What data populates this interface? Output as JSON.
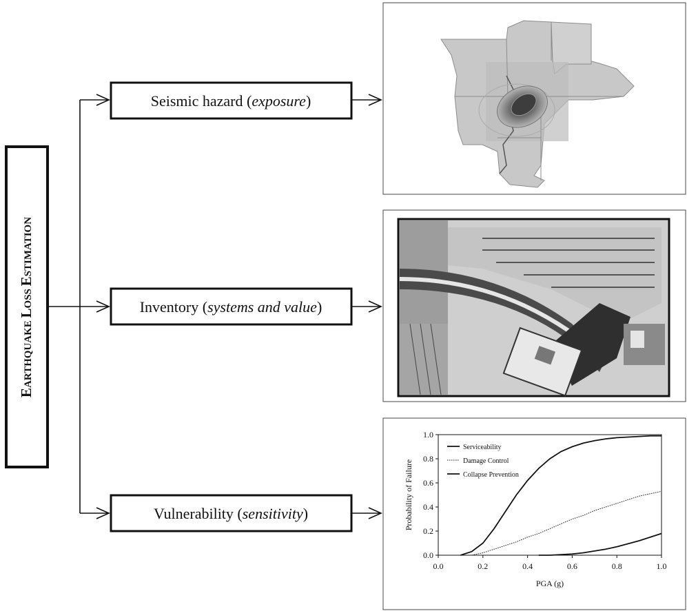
{
  "title_main": {
    "e": "E",
    "arthquake": "ARTHQUAKE ",
    "l": "L",
    "oss": "OSS ",
    "es": "E",
    "stimation": "STIMATION"
  },
  "boxes": [
    {
      "plain": "Seismic hazard (",
      "italic": "exposure",
      "close": ")"
    },
    {
      "plain": "Inventory (",
      "italic": "systems and value",
      "close": ")"
    },
    {
      "plain": "Vulnerability (",
      "italic": "sensitivity",
      "close": ")"
    }
  ],
  "colors": {
    "map_fill": "#c8c8c8",
    "map_dark": "#555555",
    "photo_light": "#d9d9d9",
    "photo_dark": "#3a3a3a"
  },
  "chart_data": {
    "type": "line",
    "xlabel": "PGA (g)",
    "ylabel": "Probability of Failure",
    "xlim": [
      0.0,
      1.0
    ],
    "ylim": [
      0.0,
      1.0
    ],
    "xticks": [
      "0.0",
      "0.2",
      "0.4",
      "0.6",
      "0.8",
      "1.0"
    ],
    "yticks": [
      "0.0",
      "0.2",
      "0.4",
      "0.6",
      "0.8",
      "1.0"
    ],
    "legend_position": "top-left",
    "series": [
      {
        "name": "Serviceability",
        "style": "solid",
        "x": [
          0.1,
          0.15,
          0.2,
          0.25,
          0.3,
          0.35,
          0.4,
          0.45,
          0.5,
          0.55,
          0.6,
          0.65,
          0.7,
          0.75,
          0.8,
          0.85,
          0.9,
          0.95,
          1.0
        ],
        "y": [
          0.0,
          0.03,
          0.1,
          0.22,
          0.36,
          0.5,
          0.62,
          0.72,
          0.8,
          0.86,
          0.9,
          0.93,
          0.95,
          0.965,
          0.975,
          0.98,
          0.985,
          0.99,
          0.99
        ]
      },
      {
        "name": "Damage Control",
        "style": "dotted",
        "x": [
          0.15,
          0.2,
          0.25,
          0.3,
          0.35,
          0.4,
          0.45,
          0.5,
          0.55,
          0.6,
          0.65,
          0.7,
          0.75,
          0.8,
          0.85,
          0.9,
          0.95,
          1.0
        ],
        "y": [
          0.0,
          0.02,
          0.05,
          0.08,
          0.11,
          0.15,
          0.18,
          0.22,
          0.26,
          0.3,
          0.33,
          0.37,
          0.4,
          0.43,
          0.46,
          0.49,
          0.51,
          0.53
        ]
      },
      {
        "name": "Collapse Prevention",
        "style": "solid",
        "x": [
          0.45,
          0.5,
          0.55,
          0.6,
          0.65,
          0.7,
          0.75,
          0.8,
          0.85,
          0.9,
          0.95,
          1.0
        ],
        "y": [
          0.0,
          0.0,
          0.005,
          0.01,
          0.02,
          0.035,
          0.05,
          0.07,
          0.095,
          0.12,
          0.15,
          0.18
        ]
      }
    ]
  }
}
